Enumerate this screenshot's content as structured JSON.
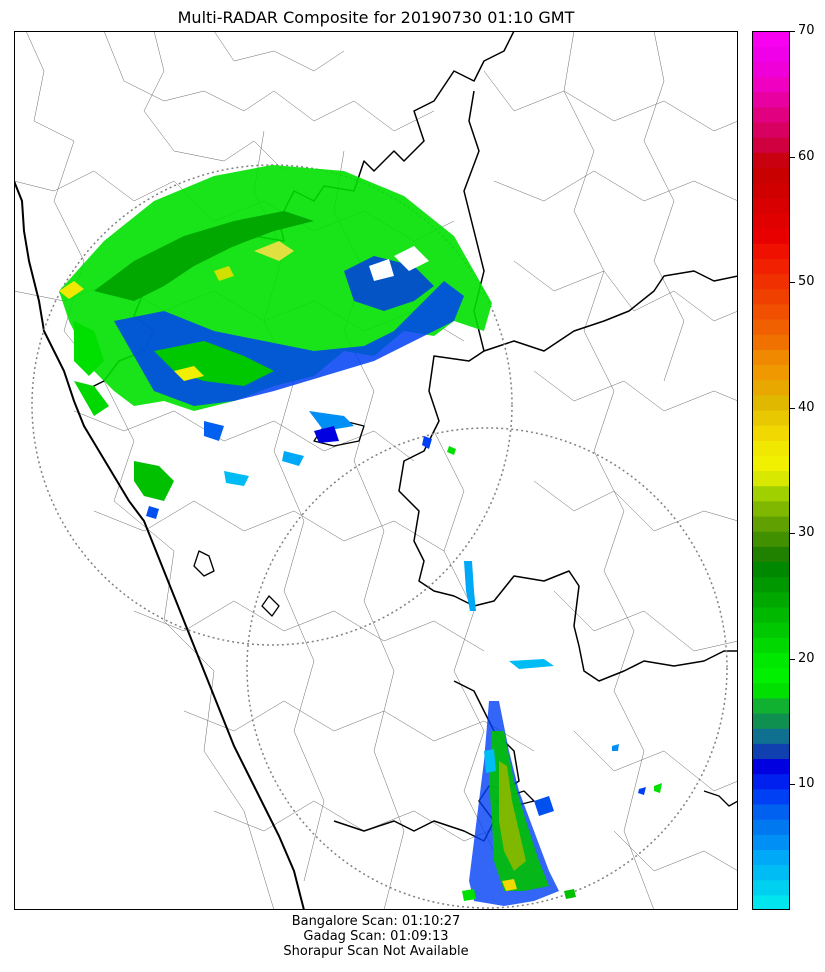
{
  "title": "Multi-RADAR Composite for 20190730 01:10 GMT",
  "footer": {
    "bangalore": "Bangalore Scan: 01:10:27",
    "gadag": "Gadag Scan: 01:09:13",
    "shorapur": "Shorapur Scan Not Available"
  },
  "colorbar": {
    "min": 0,
    "max": 70,
    "tick_labels": [
      "10",
      "20",
      "30",
      "40",
      "50",
      "60",
      "70"
    ],
    "tick_values": [
      10,
      20,
      30,
      40,
      50,
      60,
      70
    ],
    "colors": [
      "#00e5ee",
      "#00d0f0",
      "#00bcf5",
      "#00a8f8",
      "#0090f5",
      "#0078f0",
      "#0060f0",
      "#0040f5",
      "#0020f0",
      "#0000e0",
      "#1040b0",
      "#107090",
      "#109050",
      "#10b030",
      "#00e000",
      "#00f000",
      "#00e800",
      "#00d800",
      "#00c800",
      "#00b800",
      "#00a800",
      "#009800",
      "#008800",
      "#208000",
      "#409000",
      "#60a000",
      "#80b800",
      "#a0d000",
      "#d8e800",
      "#f0f000",
      "#f0e800",
      "#f0d800",
      "#e8c800",
      "#e0b800",
      "#e8a800",
      "#f09800",
      "#f08800",
      "#f07000",
      "#f06000",
      "#f05000",
      "#f04000",
      "#f03000",
      "#f02000",
      "#f01000",
      "#e80000",
      "#e00000",
      "#d80000",
      "#d00000",
      "#c80000",
      "#c80010",
      "#d00040",
      "#d80060",
      "#e00080",
      "#e800a0",
      "#f000c0",
      "#f000d8",
      "#f000e8",
      "#f800f0"
    ]
  },
  "map_layers": {
    "coast_color": "#000000",
    "state_border_color": "#000000",
    "district_border_color": "#555555",
    "range_ring_color": "#808080"
  }
}
